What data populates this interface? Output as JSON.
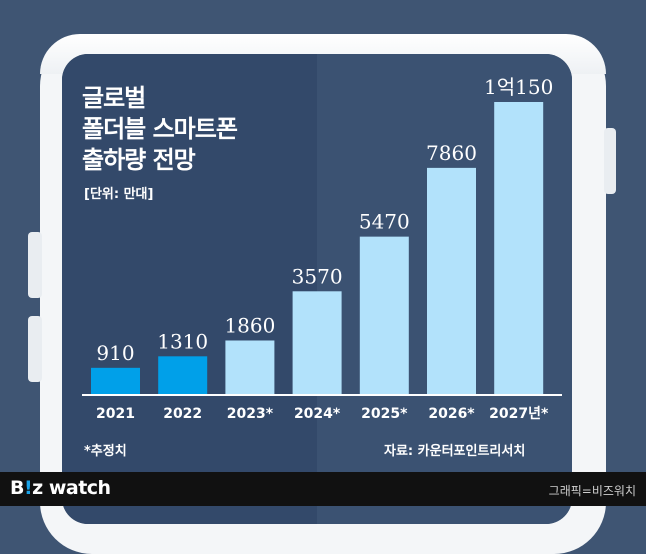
{
  "title_lines": [
    "글로벌",
    "폴더블 스마트폰",
    "출하량 전망"
  ],
  "unit_label": "[단위: 만대]",
  "footnote_estimate": "*추정치",
  "source": "자료: 카운터포인트리서치",
  "brand": {
    "logo_b": "B",
    "logo_i": "!",
    "logo_rest": "z watch"
  },
  "credit": "그래픽=비즈워치",
  "colors": {
    "background": "#3f5573",
    "actual_bar": "#00a0e9",
    "estimate_bar": "#b2e2fb",
    "value_label": "#ffffff",
    "axis_label": "#ffffff"
  },
  "chart_data": {
    "type": "bar",
    "title": "글로벌 폴더블 스마트폰 출하량 전망",
    "ylabel": "[단위: 만대]",
    "categories": [
      "2021",
      "2022",
      "2023*",
      "2024*",
      "2025*",
      "2026*",
      "2027년*"
    ],
    "values": [
      910,
      1310,
      1860,
      3570,
      5470,
      7860,
      10150
    ],
    "value_labels": [
      "910",
      "1310",
      "1860",
      "3570",
      "5470",
      "7860",
      "1억150"
    ],
    "estimated": [
      false,
      false,
      true,
      true,
      true,
      true,
      true
    ],
    "ylim": [
      0,
      10150
    ],
    "grid": false,
    "legend": "none"
  }
}
